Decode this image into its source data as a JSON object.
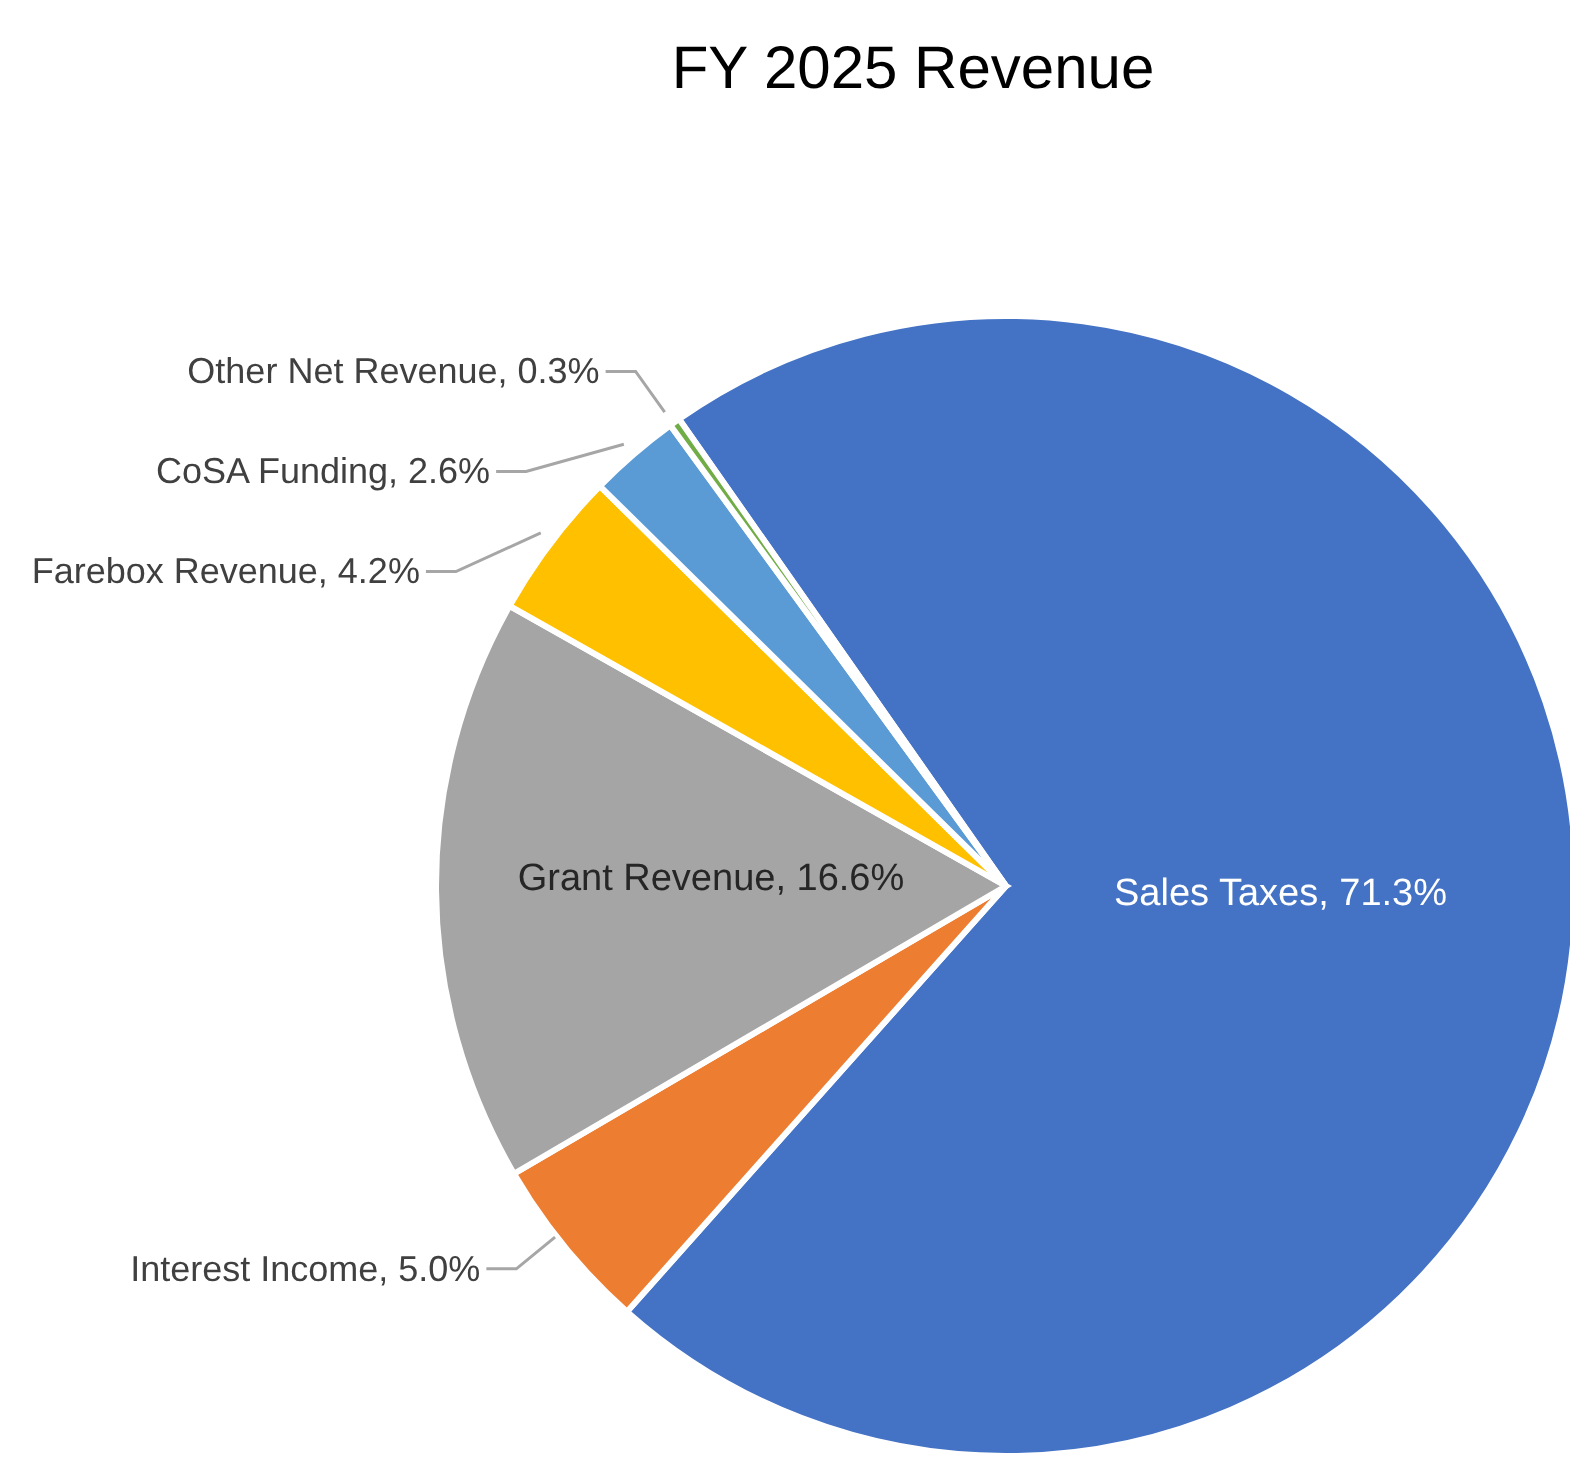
{
  "chart_data": {
    "type": "pie",
    "title": "FY 2025 Revenue",
    "categories": [
      "Sales Taxes",
      "Interest Income",
      "Grant Revenue",
      "Farebox Revenue",
      "CoSA Funding",
      "Other Net Revenue"
    ],
    "values": [
      71.3,
      5.0,
      16.6,
      4.2,
      2.6,
      0.3
    ],
    "value_labels": [
      "71.3%",
      "5.0%",
      "16.6%",
      "4.2%",
      "2.6%",
      "0.3%"
    ],
    "colors": [
      "#4472c4",
      "#ed7d31",
      "#a5a5a5",
      "#ffc000",
      "#5b9bd5",
      "#70ad47"
    ]
  }
}
